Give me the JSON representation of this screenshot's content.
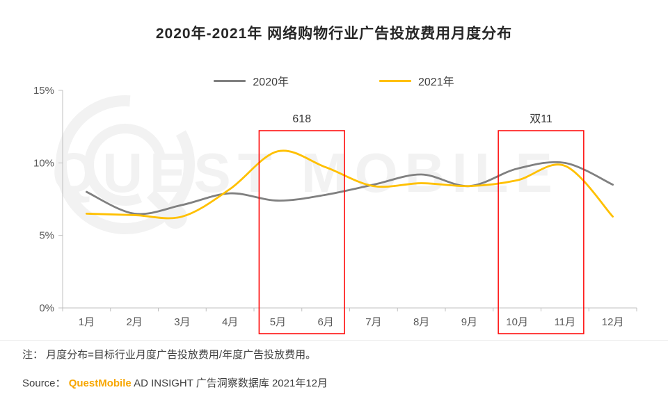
{
  "title": "2020年-2021年 网络购物行业广告投放费用月度分布",
  "legend": [
    {
      "label": "2020年",
      "color": "#808080"
    },
    {
      "label": "2021年",
      "color": "#FFC000"
    }
  ],
  "chart_data": {
    "type": "line",
    "categories": [
      "1月",
      "2月",
      "3月",
      "4月",
      "5月",
      "6月",
      "7月",
      "8月",
      "9月",
      "10月",
      "11月",
      "12月"
    ],
    "series": [
      {
        "name": "2020年",
        "color": "#808080",
        "values": [
          8.0,
          6.5,
          7.1,
          7.9,
          7.4,
          7.8,
          8.5,
          9.2,
          8.4,
          9.6,
          10.0,
          8.5
        ]
      },
      {
        "name": "2021年",
        "color": "#FFC000",
        "values": [
          6.5,
          6.4,
          6.3,
          8.2,
          10.8,
          9.7,
          8.4,
          8.6,
          8.4,
          8.8,
          9.8,
          6.3
        ]
      }
    ],
    "title": "2020年-2021年 网络购物行业广告投放费用月度分布",
    "xlabel": "",
    "ylabel": "",
    "ylim": [
      0,
      15
    ],
    "yticks": [
      "0%",
      "5%",
      "10%",
      "15%"
    ],
    "grid": false,
    "legend_position": "top-center",
    "annotations": [
      {
        "label": "618",
        "from": 4,
        "to": 5,
        "color": "#FF0000"
      },
      {
        "label": "双11",
        "from": 9,
        "to": 10,
        "color": "#FF0000"
      }
    ]
  },
  "watermark": {
    "text": "QUEST MOBILE"
  },
  "footer": {
    "note": "注： 月度分布=目标行业月度广告投放费用/年度广告投放费用。",
    "source_prefix": "Source：",
    "source_brand": "QuestMobile",
    "source_rest": " AD INSIGHT 广告洞察数据库 2021年12月",
    "brand_color": "#F7A600"
  }
}
